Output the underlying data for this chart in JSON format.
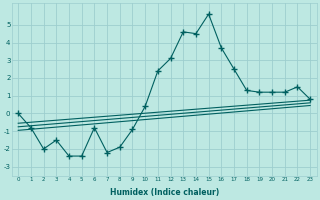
{
  "xlabel": "Humidex (Indice chaleur)",
  "ylabel": "",
  "bg_color": "#bde8e2",
  "grid_color": "#9dcece",
  "line_color": "#006060",
  "xlim": [
    -0.5,
    23.5
  ],
  "ylim": [
    -3.5,
    6.2
  ],
  "x": [
    0,
    1,
    2,
    3,
    4,
    5,
    6,
    7,
    8,
    9,
    10,
    11,
    12,
    13,
    14,
    15,
    16,
    17,
    18,
    19,
    20,
    21,
    22,
    23
  ],
  "y": [
    0,
    -0.8,
    -2.0,
    -1.5,
    -2.4,
    -2.4,
    -0.8,
    -2.2,
    -1.9,
    -0.9,
    0.4,
    2.4,
    3.1,
    4.6,
    4.5,
    5.6,
    3.7,
    2.5,
    1.3,
    1.2,
    1.2,
    1.2,
    1.5,
    0.8
  ],
  "trend1_x": [
    0,
    23
  ],
  "trend1_y": [
    -0.55,
    0.75
  ],
  "trend2_x": [
    0,
    23
  ],
  "trend2_y": [
    -0.75,
    0.6
  ],
  "trend3_x": [
    0,
    23
  ],
  "trend3_y": [
    -0.95,
    0.45
  ],
  "xticks": [
    0,
    1,
    2,
    3,
    4,
    5,
    6,
    7,
    8,
    9,
    10,
    11,
    12,
    13,
    14,
    15,
    16,
    17,
    18,
    19,
    20,
    21,
    22,
    23
  ],
  "yticks": [
    -3,
    -2,
    -1,
    0,
    1,
    2,
    3,
    4,
    5
  ]
}
